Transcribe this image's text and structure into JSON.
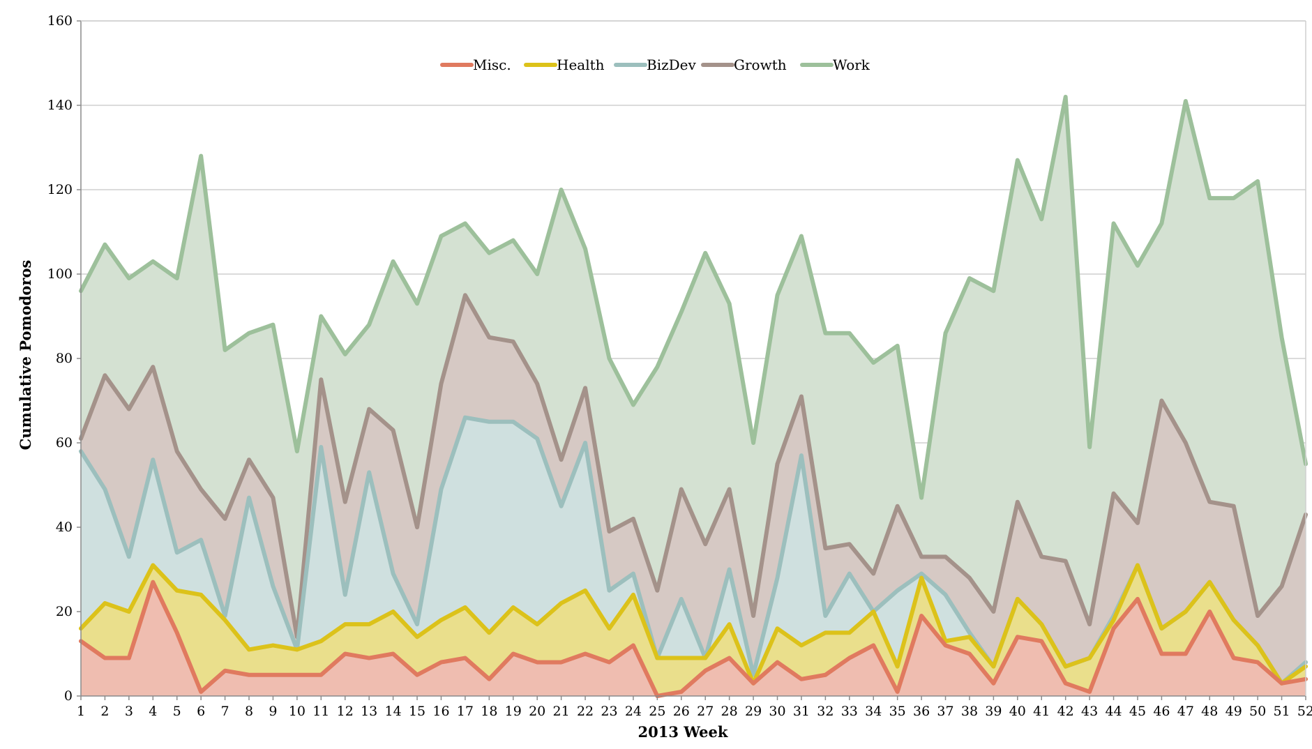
{
  "chart_data": {
    "type": "area",
    "xlabel": "2013 Week",
    "ylabel": "Cumulative Pomodoros",
    "xlim": [
      1,
      52
    ],
    "ylim": [
      0,
      160
    ],
    "y_ticks": [
      0,
      20,
      40,
      60,
      80,
      100,
      120,
      140,
      160
    ],
    "x": [
      1,
      2,
      3,
      4,
      5,
      6,
      7,
      8,
      9,
      10,
      11,
      12,
      13,
      14,
      15,
      16,
      17,
      18,
      19,
      20,
      21,
      22,
      23,
      24,
      25,
      26,
      27,
      28,
      29,
      30,
      31,
      32,
      33,
      34,
      35,
      36,
      37,
      38,
      39,
      40,
      41,
      42,
      43,
      44,
      45,
      46,
      47,
      48,
      49,
      50,
      51,
      52
    ],
    "grid": "horizontal",
    "legend_position": "top-center",
    "stacked": true,
    "series": [
      {
        "name": "Misc.",
        "line_color": "#e07a5f",
        "fill_color": "#efbdb0",
        "values": [
          13,
          9,
          9,
          27,
          15,
          1,
          6,
          5,
          5,
          5,
          5,
          10,
          9,
          10,
          5,
          8,
          9,
          4,
          10,
          8,
          8,
          10,
          8,
          12,
          0,
          1,
          6,
          9,
          3,
          8,
          4,
          5,
          9,
          12,
          1,
          19,
          12,
          10,
          3,
          14,
          13,
          3,
          1,
          16,
          23,
          10,
          10,
          20,
          9,
          8,
          3,
          4
        ]
      },
      {
        "name": "Health",
        "line_color": "#dcc21a",
        "fill_color": "#eadf8c",
        "values": [
          16,
          22,
          20,
          31,
          25,
          24,
          18,
          11,
          12,
          11,
          13,
          17,
          17,
          20,
          14,
          18,
          21,
          15,
          21,
          17,
          22,
          25,
          16,
          24,
          9,
          9,
          9,
          17,
          3,
          16,
          12,
          15,
          15,
          20,
          7,
          28,
          13,
          14,
          7,
          23,
          17,
          7,
          9,
          18,
          31,
          16,
          20,
          27,
          18,
          12,
          3,
          7
        ]
      },
      {
        "name": "BizDev",
        "line_color": "#9cbfbd",
        "fill_color": "#cfe0df",
        "values": [
          58,
          49,
          33,
          56,
          34,
          37,
          19,
          47,
          26,
          11,
          59,
          24,
          53,
          29,
          17,
          49,
          66,
          65,
          65,
          61,
          45,
          60,
          25,
          29,
          9,
          23,
          9,
          30,
          5,
          28,
          57,
          19,
          29,
          20,
          25,
          29,
          24,
          15,
          7,
          23,
          17,
          7,
          9,
          19,
          31,
          16,
          20,
          27,
          18,
          12,
          3,
          8
        ]
      },
      {
        "name": "Growth",
        "line_color": "#a4928a",
        "fill_color": "#d6c9c4",
        "values": [
          61,
          76,
          68,
          78,
          58,
          49,
          42,
          56,
          47,
          14,
          75,
          46,
          68,
          63,
          40,
          74,
          95,
          85,
          84,
          74,
          56,
          73,
          39,
          42,
          25,
          49,
          36,
          49,
          19,
          55,
          71,
          35,
          36,
          29,
          45,
          33,
          33,
          28,
          20,
          46,
          33,
          32,
          17,
          48,
          41,
          70,
          60,
          46,
          45,
          19,
          26,
          43
        ]
      },
      {
        "name": "Work",
        "line_color": "#9dc09b",
        "fill_color": "#d4e1d2",
        "values": [
          96,
          107,
          99,
          103,
          99,
          128,
          82,
          86,
          88,
          58,
          90,
          81,
          88,
          103,
          93,
          109,
          112,
          105,
          108,
          100,
          120,
          106,
          80,
          69,
          78,
          91,
          105,
          93,
          60,
          95,
          109,
          86,
          86,
          79,
          83,
          47,
          86,
          99,
          96,
          127,
          113,
          142,
          59,
          112,
          102,
          112,
          141,
          118,
          118,
          122,
          85,
          55
        ]
      }
    ]
  }
}
